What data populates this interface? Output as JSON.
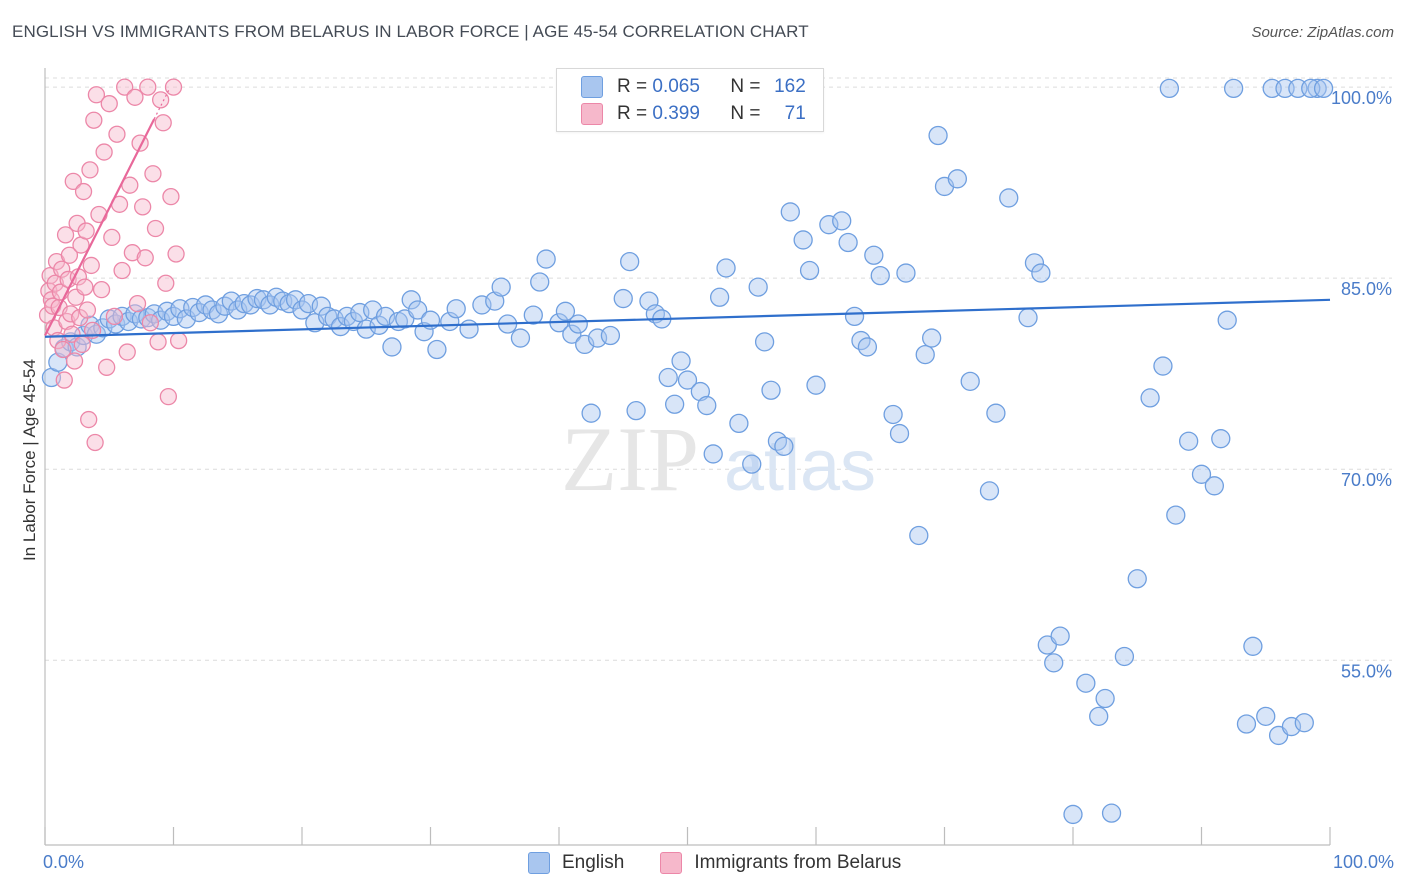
{
  "title": "ENGLISH VS IMMIGRANTS FROM BELARUS IN LABOR FORCE | AGE 45-54 CORRELATION CHART",
  "source": "Source: ZipAtlas.com",
  "watermark": {
    "zip": "ZIP",
    "atlas": "atlas"
  },
  "colors": {
    "english_fill": "#a9c6ef",
    "english_stroke": "#6f9fe0",
    "english_line": "#2f6fcc",
    "belarus_fill": "#f6b8cb",
    "belarus_stroke": "#ec87a8",
    "belarus_line": "#e8689a",
    "axis_label": "#4a7cc9",
    "grid": "#dcdcdc"
  },
  "stats": {
    "english": {
      "r_label": "R =",
      "r": "0.065",
      "n_label": "N =",
      "n": "162"
    },
    "belarus": {
      "r_label": "R =",
      "r": "0.399",
      "n_label": "N =",
      "n": "71"
    }
  },
  "legend": {
    "english": "English",
    "belarus": "Immigrants from Belarus"
  },
  "chart_data": {
    "type": "scatter",
    "title": "ENGLISH VS IMMIGRANTS FROM BELARUS IN LABOR FORCE | AGE 45-54 CORRELATION CHART",
    "xlabel": "",
    "ylabel": "In Labor Force | Age 45-54",
    "xlim": [
      0,
      100
    ],
    "ylim": [
      40.5,
      101.5
    ],
    "x_tick_labels": [
      "0.0%",
      "100.0%"
    ],
    "y_ticks": [
      {
        "value": 55,
        "label": "55.0%"
      },
      {
        "value": 70,
        "label": "70.0%"
      },
      {
        "value": 85,
        "label": "85.0%"
      },
      {
        "value": 100,
        "label": "100.0%"
      }
    ],
    "grid": true,
    "series": [
      {
        "name": "English",
        "trend": {
          "x": [
            0,
            100
          ],
          "y": [
            80.4,
            83.3
          ]
        },
        "points": [
          [
            0.5,
            77.2
          ],
          [
            1.0,
            78.4
          ],
          [
            1.5,
            79.5
          ],
          [
            2.0,
            80.0
          ],
          [
            2.5,
            79.6
          ],
          [
            3.0,
            80.5
          ],
          [
            3.5,
            81.3
          ],
          [
            4.0,
            80.6
          ],
          [
            4.5,
            81.1
          ],
          [
            5.0,
            81.8
          ],
          [
            5.5,
            81.4
          ],
          [
            6.0,
            82.0
          ],
          [
            6.5,
            81.6
          ],
          [
            7.0,
            82.2
          ],
          [
            7.5,
            81.8
          ],
          [
            8.0,
            81.9
          ],
          [
            8.5,
            82.2
          ],
          [
            9.0,
            81.7
          ],
          [
            9.5,
            82.4
          ],
          [
            10.0,
            82.0
          ],
          [
            10.5,
            82.6
          ],
          [
            11.0,
            81.8
          ],
          [
            11.5,
            82.7
          ],
          [
            12.0,
            82.3
          ],
          [
            12.5,
            82.9
          ],
          [
            13.0,
            82.5
          ],
          [
            13.5,
            82.2
          ],
          [
            14.0,
            82.8
          ],
          [
            14.5,
            83.2
          ],
          [
            15.0,
            82.5
          ],
          [
            15.5,
            83.0
          ],
          [
            16.0,
            82.9
          ],
          [
            16.5,
            83.4
          ],
          [
            17.0,
            83.3
          ],
          [
            17.5,
            82.9
          ],
          [
            18.0,
            83.5
          ],
          [
            18.5,
            83.2
          ],
          [
            19.0,
            83.0
          ],
          [
            19.5,
            83.3
          ],
          [
            20.0,
            82.5
          ],
          [
            20.5,
            83.0
          ],
          [
            21.0,
            81.5
          ],
          [
            21.5,
            82.8
          ],
          [
            22.0,
            82.0
          ],
          [
            22.5,
            81.8
          ],
          [
            23.0,
            81.2
          ],
          [
            23.5,
            82.0
          ],
          [
            24.0,
            81.6
          ],
          [
            24.5,
            82.3
          ],
          [
            25.0,
            81.0
          ],
          [
            25.5,
            82.5
          ],
          [
            26.0,
            81.3
          ],
          [
            26.5,
            82.0
          ],
          [
            27.0,
            79.6
          ],
          [
            27.5,
            81.6
          ],
          [
            28.0,
            81.8
          ],
          [
            28.5,
            83.3
          ],
          [
            29.0,
            82.5
          ],
          [
            29.5,
            80.8
          ],
          [
            30.0,
            81.7
          ],
          [
            30.5,
            79.4
          ],
          [
            31.5,
            81.6
          ],
          [
            32.0,
            82.6
          ],
          [
            33.0,
            81.0
          ],
          [
            34.0,
            82.9
          ],
          [
            35.0,
            83.2
          ],
          [
            35.5,
            84.3
          ],
          [
            36.0,
            81.4
          ],
          [
            37.0,
            80.3
          ],
          [
            38.0,
            82.1
          ],
          [
            38.5,
            84.7
          ],
          [
            39.0,
            86.5
          ],
          [
            40.0,
            81.5
          ],
          [
            40.5,
            82.4
          ],
          [
            41.0,
            80.6
          ],
          [
            41.5,
            81.4
          ],
          [
            42.0,
            79.8
          ],
          [
            42.5,
            74.4
          ],
          [
            43.0,
            80.3
          ],
          [
            44.0,
            80.5
          ],
          [
            45.0,
            83.4
          ],
          [
            45.5,
            86.3
          ],
          [
            46.0,
            74.6
          ],
          [
            47.0,
            83.2
          ],
          [
            47.5,
            82.2
          ],
          [
            48.0,
            81.8
          ],
          [
            48.5,
            77.2
          ],
          [
            49.0,
            75.1
          ],
          [
            49.5,
            78.5
          ],
          [
            50.0,
            77.0
          ],
          [
            51.0,
            76.1
          ],
          [
            51.5,
            75.0
          ],
          [
            52.0,
            71.2
          ],
          [
            52.5,
            83.5
          ],
          [
            53.0,
            85.8
          ],
          [
            54.0,
            73.6
          ],
          [
            55.0,
            70.4
          ],
          [
            55.5,
            84.3
          ],
          [
            56.0,
            80.0
          ],
          [
            56.5,
            76.2
          ],
          [
            57.0,
            72.2
          ],
          [
            57.5,
            71.8
          ],
          [
            58.0,
            90.2
          ],
          [
            59.0,
            88.0
          ],
          [
            59.5,
            85.6
          ],
          [
            60.0,
            76.6
          ],
          [
            61.0,
            89.2
          ],
          [
            62.0,
            89.5
          ],
          [
            62.5,
            87.8
          ],
          [
            63.0,
            82.0
          ],
          [
            63.5,
            80.1
          ],
          [
            64.0,
            79.6
          ],
          [
            64.5,
            86.8
          ],
          [
            65.0,
            85.2
          ],
          [
            66.0,
            74.3
          ],
          [
            66.5,
            72.8
          ],
          [
            67.0,
            85.4
          ],
          [
            68.0,
            64.8
          ],
          [
            68.5,
            79.0
          ],
          [
            69.0,
            80.3
          ],
          [
            69.5,
            96.2
          ],
          [
            70.0,
            92.2
          ],
          [
            71.0,
            92.8
          ],
          [
            72.0,
            76.9
          ],
          [
            73.5,
            68.3
          ],
          [
            74.0,
            74.4
          ],
          [
            75.0,
            91.3
          ],
          [
            76.5,
            81.9
          ],
          [
            77.0,
            86.2
          ],
          [
            77.5,
            85.4
          ],
          [
            78.0,
            56.2
          ],
          [
            78.5,
            54.8
          ],
          [
            79.0,
            56.9
          ],
          [
            80.0,
            42.9
          ],
          [
            81.0,
            53.2
          ],
          [
            82.0,
            50.6
          ],
          [
            82.5,
            52.0
          ],
          [
            83.0,
            43.0
          ],
          [
            84.0,
            55.3
          ],
          [
            85.0,
            61.4
          ],
          [
            86.0,
            75.6
          ],
          [
            87.0,
            78.1
          ],
          [
            88.0,
            66.4
          ],
          [
            89.0,
            72.2
          ],
          [
            90.0,
            69.6
          ],
          [
            91.0,
            68.7
          ],
          [
            91.5,
            72.4
          ],
          [
            92.0,
            81.7
          ],
          [
            93.5,
            50.0
          ],
          [
            94.0,
            56.1
          ],
          [
            95.0,
            50.6
          ],
          [
            96.0,
            49.1
          ],
          [
            97.0,
            49.8
          ],
          [
            98.0,
            50.1
          ],
          [
            99.0,
            99.9
          ],
          [
            87.5,
            99.9
          ],
          [
            92.5,
            99.9
          ],
          [
            95.5,
            99.9
          ],
          [
            96.5,
            99.9
          ],
          [
            97.5,
            99.9
          ],
          [
            98.5,
            99.9
          ],
          [
            99.5,
            99.9
          ]
        ]
      },
      {
        "name": "Immigrants from Belarus",
        "trend": {
          "x": [
            0,
            8.5
          ],
          "y": [
            80.5,
            97.5
          ]
        },
        "points": [
          [
            0.2,
            82.1
          ],
          [
            0.3,
            84.0
          ],
          [
            0.4,
            85.2
          ],
          [
            0.5,
            83.3
          ],
          [
            0.6,
            82.8
          ],
          [
            0.7,
            81.1
          ],
          [
            0.8,
            84.6
          ],
          [
            0.9,
            86.3
          ],
          [
            1.0,
            80.1
          ],
          [
            1.1,
            82.7
          ],
          [
            1.2,
            83.9
          ],
          [
            1.3,
            85.7
          ],
          [
            1.4,
            79.4
          ],
          [
            1.5,
            77.0
          ],
          [
            1.6,
            88.4
          ],
          [
            1.7,
            81.6
          ],
          [
            1.8,
            84.9
          ],
          [
            1.9,
            86.8
          ],
          [
            2.0,
            82.2
          ],
          [
            2.1,
            80.6
          ],
          [
            2.2,
            92.6
          ],
          [
            2.3,
            78.5
          ],
          [
            2.4,
            83.5
          ],
          [
            2.5,
            89.3
          ],
          [
            2.6,
            85.1
          ],
          [
            2.7,
            81.9
          ],
          [
            2.8,
            87.6
          ],
          [
            2.9,
            79.8
          ],
          [
            3.0,
            91.8
          ],
          [
            3.1,
            84.3
          ],
          [
            3.2,
            88.7
          ],
          [
            3.3,
            82.5
          ],
          [
            3.4,
            73.9
          ],
          [
            3.5,
            93.5
          ],
          [
            3.6,
            86.0
          ],
          [
            3.7,
            80.9
          ],
          [
            3.8,
            97.4
          ],
          [
            3.9,
            72.1
          ],
          [
            4.0,
            99.4
          ],
          [
            4.2,
            90.0
          ],
          [
            4.4,
            84.1
          ],
          [
            4.6,
            94.9
          ],
          [
            4.8,
            78.0
          ],
          [
            5.0,
            98.7
          ],
          [
            5.2,
            88.2
          ],
          [
            5.4,
            82.0
          ],
          [
            5.6,
            96.3
          ],
          [
            5.8,
            90.8
          ],
          [
            6.0,
            85.6
          ],
          [
            6.2,
            100.0
          ],
          [
            6.4,
            79.2
          ],
          [
            6.6,
            92.3
          ],
          [
            6.8,
            87.0
          ],
          [
            7.0,
            99.2
          ],
          [
            7.2,
            83.0
          ],
          [
            7.4,
            95.6
          ],
          [
            7.6,
            90.6
          ],
          [
            7.8,
            86.6
          ],
          [
            8.0,
            100.0
          ],
          [
            8.2,
            81.5
          ],
          [
            8.4,
            93.2
          ],
          [
            8.6,
            88.9
          ],
          [
            8.8,
            80.0
          ],
          [
            9.0,
            99.0
          ],
          [
            9.2,
            97.2
          ],
          [
            9.4,
            84.6
          ],
          [
            9.6,
            75.7
          ],
          [
            9.8,
            91.4
          ],
          [
            10.0,
            100.0
          ],
          [
            10.2,
            86.9
          ],
          [
            10.4,
            80.1
          ]
        ]
      }
    ]
  },
  "y_axis_label": "In Labor Force | Age 45-54",
  "x_axis": {
    "min_label": "0.0%",
    "max_label": "100.0%"
  }
}
